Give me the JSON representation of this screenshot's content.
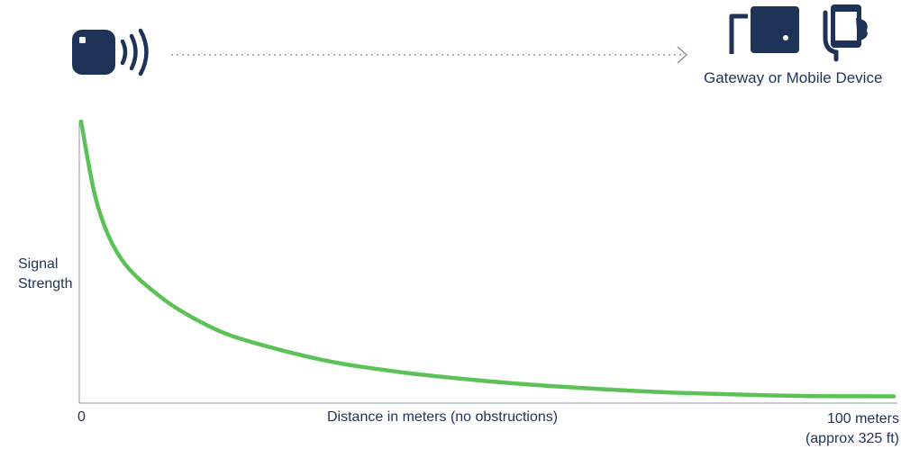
{
  "icons": {
    "beacon": "beacon-tag-with-signal-waves-icon",
    "arrow": "dotted-arrow-right-icon",
    "gateway": "gateway-wall-box-icon",
    "mobile": "hand-holding-phone-icon"
  },
  "header": {
    "device_label": "Gateway or Mobile Device"
  },
  "colors": {
    "navy": "#1f3358",
    "curve": "#5cc157",
    "axis": "#8a94a8"
  },
  "chart_data": {
    "type": "line",
    "title": "",
    "ylabel_lines": [
      "Signal",
      "Strength"
    ],
    "xlabel": "Distance in meters (no obstructions)",
    "x_tick_start": "0",
    "x_tick_end_lines": [
      "100 meters",
      "(approx 325 ft)"
    ],
    "xlim": [
      0,
      100
    ],
    "ylim": [
      0,
      1
    ],
    "grid": false,
    "series": [
      {
        "values": [
          {
            "x": 0,
            "y": 1.0
          },
          {
            "x": 2,
            "y": 0.7
          },
          {
            "x": 5,
            "y": 0.5
          },
          {
            "x": 10,
            "y": 0.36
          },
          {
            "x": 15,
            "y": 0.27
          },
          {
            "x": 20,
            "y": 0.21
          },
          {
            "x": 30,
            "y": 0.135
          },
          {
            "x": 40,
            "y": 0.09
          },
          {
            "x": 50,
            "y": 0.06
          },
          {
            "x": 60,
            "y": 0.038
          },
          {
            "x": 70,
            "y": 0.022
          },
          {
            "x": 80,
            "y": 0.012
          },
          {
            "x": 90,
            "y": 0.006
          },
          {
            "x": 100,
            "y": 0.005
          }
        ]
      }
    ]
  }
}
